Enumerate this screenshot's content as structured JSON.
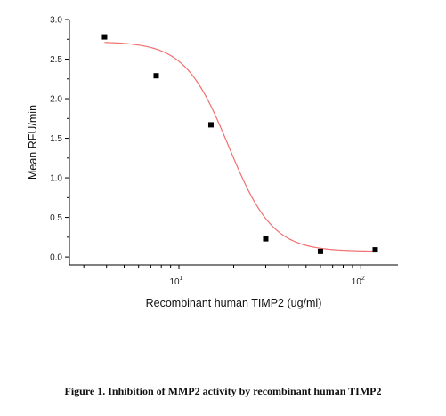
{
  "chart_data": {
    "type": "scatter",
    "xlabel": "Recombinant human TIMP2 (ug/ml)",
    "ylabel": "Mean RFU/min",
    "xscale": "log",
    "xlim": [
      2.5,
      160
    ],
    "ylim": [
      -0.1,
      3.0
    ],
    "yticks": [
      "0.0",
      "0.5",
      "1.0",
      "1.5",
      "2.0",
      "2.5",
      "3.0"
    ],
    "xticks": [
      {
        "value": 10,
        "base": "10",
        "exp": "1"
      },
      {
        "value": 100,
        "base": "10",
        "exp": "2"
      }
    ],
    "points": [
      {
        "x": 3.9,
        "y": 2.78
      },
      {
        "x": 7.5,
        "y": 2.29
      },
      {
        "x": 15,
        "y": 1.67
      },
      {
        "x": 30,
        "y": 0.23
      },
      {
        "x": 60,
        "y": 0.07
      },
      {
        "x": 120,
        "y": 0.09
      }
    ],
    "fit": {
      "type": "logistic",
      "top": 2.72,
      "bottom": 0.07,
      "ec50": 18.8,
      "hill": 3.6,
      "color": "#f07070"
    },
    "marker_color": "#000000",
    "grid": false,
    "legend": "none"
  },
  "caption": "Figure 1. Inhibition of MMP2 activity by recombinant human TIMP2"
}
